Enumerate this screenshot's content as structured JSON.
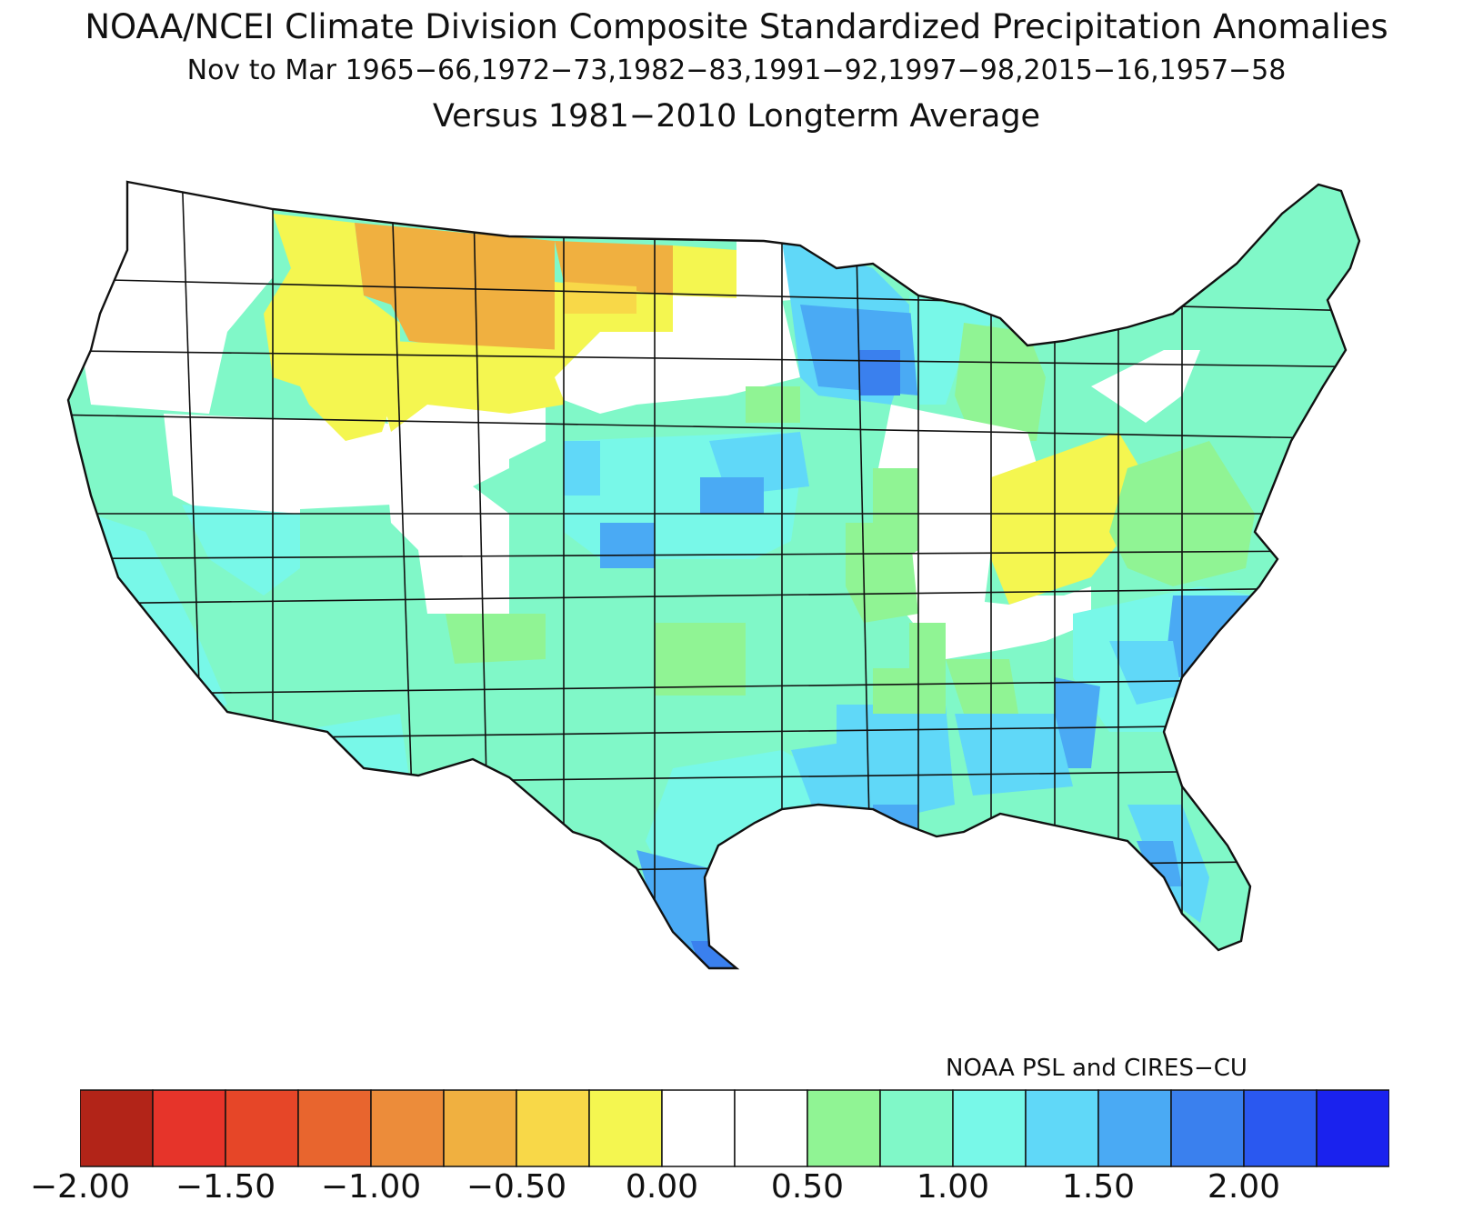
{
  "title": {
    "line1": "NOAA/NCEI Climate Division Composite Standardized Precipitation Anomalies",
    "line2": "Nov to Mar  1965−66,1972−73,1982−83,1991−92,1997−98,2015−16,1957−58",
    "line3": "Versus 1981−2010 Longterm Average"
  },
  "credit": "NOAA PSL and CIRES−CU",
  "colorbar": {
    "colors": [
      "#b22418",
      "#e6342a",
      "#e64628",
      "#e8652e",
      "#ec8c3a",
      "#f0b040",
      "#f8d848",
      "#f4f650",
      "#ffffff",
      "#ffffff",
      "#90f494",
      "#80f8c8",
      "#78f8e8",
      "#60d8f8",
      "#4aaaf4",
      "#3a80ee",
      "#2a58f0",
      "#1a22ee"
    ],
    "tick_labels": [
      "−2.00",
      "−1.50",
      "−1.00",
      "−0.50",
      "0.00",
      "0.50",
      "1.00",
      "1.50",
      "2.00"
    ]
  },
  "legend_colors": {
    "strong_wet": "#3a80ee",
    "wet": "#60d8f8",
    "moderate_wet": "#78f8e8",
    "light_wet": "#80f8c8",
    "slight_wet": "#90f494",
    "neutral": "#ffffff",
    "slight_dry": "#f4f650",
    "dry": "#f8d848",
    "moderate_dry": "#f0b040"
  }
}
